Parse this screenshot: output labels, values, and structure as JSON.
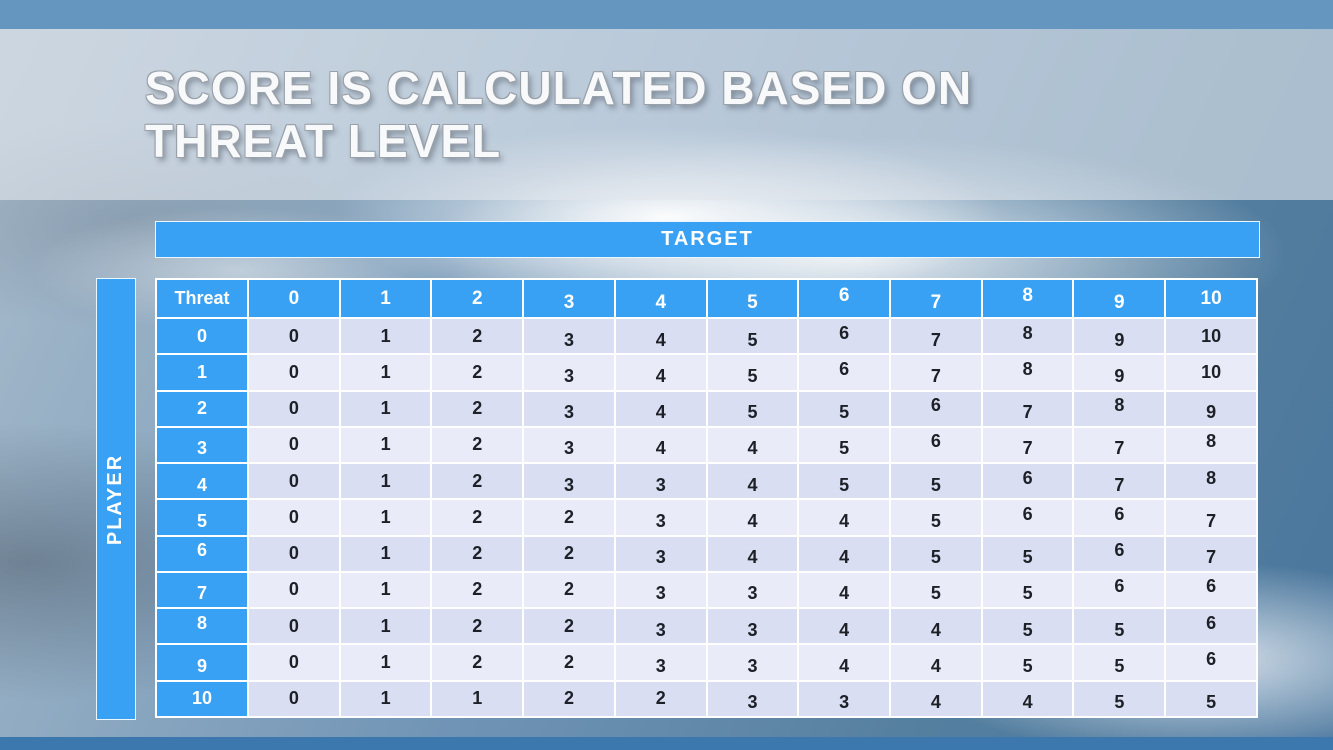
{
  "slide": {
    "title": "SCORE IS CALCULATED BASED ON THREAT LEVEL"
  },
  "matrix": {
    "target_label": "TARGET",
    "player_label": "PLAYER",
    "corner_label": "Threat",
    "column_headers": [
      "0",
      "1",
      "2",
      "3",
      "4",
      "5",
      "6",
      "7",
      "8",
      "9",
      "10"
    ],
    "row_headers": [
      "0",
      "1",
      "2",
      "3",
      "4",
      "5",
      "6",
      "7",
      "8",
      "9",
      "10"
    ],
    "rows": [
      [
        "0",
        "1",
        "2",
        "3",
        "4",
        "5",
        "6",
        "7",
        "8",
        "9",
        "10"
      ],
      [
        "0",
        "1",
        "2",
        "3",
        "4",
        "5",
        "6",
        "7",
        "8",
        "9",
        "10"
      ],
      [
        "0",
        "1",
        "2",
        "3",
        "4",
        "5",
        "5",
        "6",
        "7",
        "8",
        "9"
      ],
      [
        "0",
        "1",
        "2",
        "3",
        "4",
        "4",
        "5",
        "6",
        "7",
        "7",
        "8"
      ],
      [
        "0",
        "1",
        "2",
        "3",
        "3",
        "4",
        "5",
        "5",
        "6",
        "7",
        "8"
      ],
      [
        "0",
        "1",
        "2",
        "2",
        "3",
        "4",
        "4",
        "5",
        "6",
        "6",
        "7"
      ],
      [
        "0",
        "1",
        "2",
        "2",
        "3",
        "4",
        "4",
        "5",
        "5",
        "6",
        "7"
      ],
      [
        "0",
        "1",
        "2",
        "2",
        "3",
        "3",
        "4",
        "5",
        "5",
        "6",
        "6"
      ],
      [
        "0",
        "1",
        "2",
        "2",
        "3",
        "3",
        "4",
        "4",
        "5",
        "5",
        "6"
      ],
      [
        "0",
        "1",
        "2",
        "2",
        "3",
        "3",
        "4",
        "4",
        "5",
        "5",
        "6"
      ],
      [
        "0",
        "1",
        "1",
        "2",
        "2",
        "3",
        "3",
        "4",
        "4",
        "5",
        "5"
      ]
    ]
  },
  "colors": {
    "accent_blue": "#38a1f3",
    "band_dark": "#d9def2",
    "band_light": "#e9ecf8",
    "top_strip": "#6596c0",
    "bottom_strip": "#3c77ae"
  }
}
